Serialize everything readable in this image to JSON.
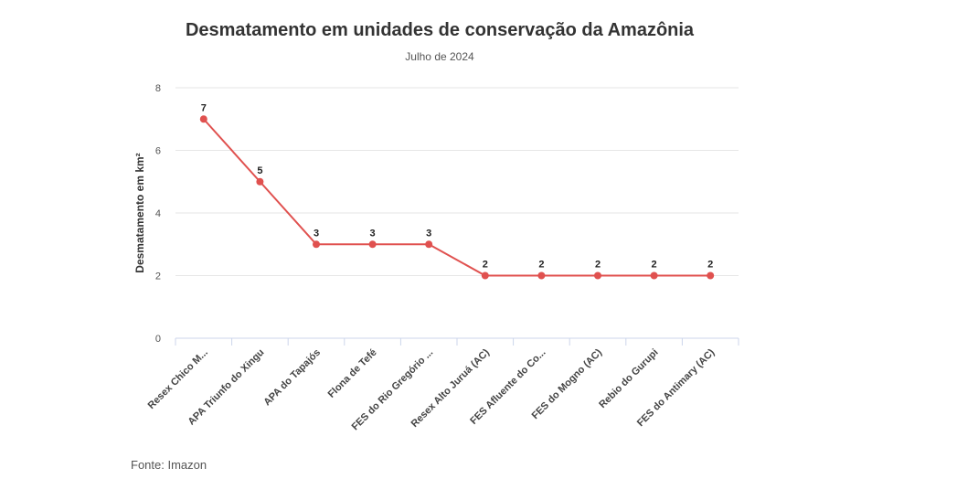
{
  "header": {
    "title": "Desmatamento em unidades de conservação da Amazônia",
    "subtitle": "Julho de 2024"
  },
  "footer": {
    "source": "Fonte: Imazon"
  },
  "colors": {
    "series": "#e0514f",
    "grid": "#e6e6e6",
    "axis": "#ccd6eb"
  },
  "chart_data": {
    "type": "line",
    "title": "Desmatamento em unidades de conservação da Amazônia",
    "subtitle": "Julho de 2024",
    "xlabel": "",
    "ylabel": "Desmatamento em km²",
    "categories": [
      "Resex Chico M...",
      "APA Triunfo do Xingu",
      "APA do Tapajós",
      "Flona de Tefé",
      "FES do Rio Gregório ...",
      "Resex Alto Juruá (AC)",
      "FES Afluente do Co...",
      "FES do Mogno (AC)",
      "Rebio do Gurupi",
      "FES do Antimary (AC)"
    ],
    "values": [
      7,
      5,
      3,
      3,
      3,
      2,
      2,
      2,
      2,
      2
    ],
    "ylim": [
      0,
      8
    ],
    "yticks": [
      0,
      2,
      4,
      6,
      8
    ],
    "grid": true,
    "legend": "none",
    "data_labels": true
  }
}
